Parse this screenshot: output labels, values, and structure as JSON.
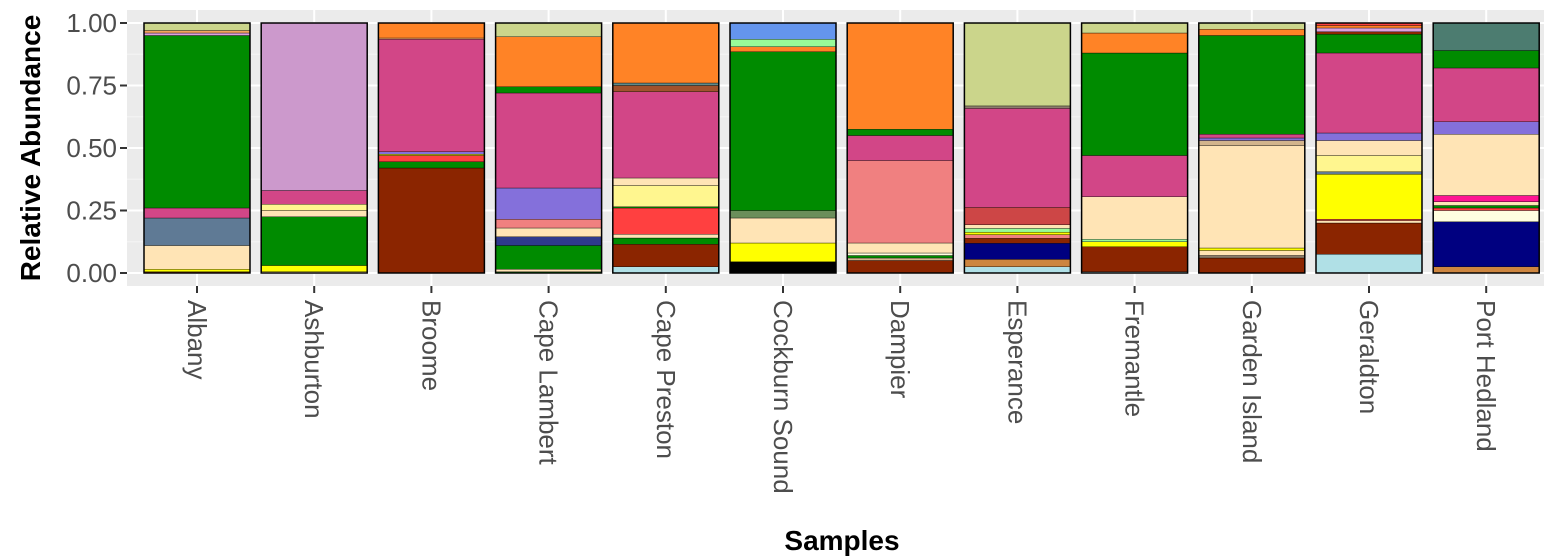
{
  "chart_data": {
    "type": "bar",
    "stacked": true,
    "xlabel": "Samples",
    "ylabel": "Relative Abundance",
    "ylim": [
      0,
      1
    ],
    "yticks": [
      "0.00",
      "0.25",
      "0.50",
      "0.75",
      "1.00"
    ],
    "grid": true,
    "legend": "none",
    "categories": [
      "Albany",
      "Ashburton",
      "Broome",
      "Cape Lambert",
      "Cape Preston",
      "Cockburn Sound",
      "Dampier",
      "Esperance",
      "Fremantle",
      "Garden Island",
      "Geraldton",
      "Port Hedland"
    ],
    "bars": [
      {
        "category": "Albany",
        "segments": [
          {
            "color": "#8B2500",
            "value": 0.005
          },
          {
            "color": "#FFFF00",
            "value": 0.01
          },
          {
            "color": "#FFE4B5",
            "value": 0.095
          },
          {
            "color": "#5F7A95",
            "value": 0.11
          },
          {
            "color": "#D24687",
            "value": 0.04
          },
          {
            "color": "#008B00",
            "value": 0.69
          },
          {
            "color": "#DDA0DD",
            "value": 0.01
          },
          {
            "color": "#F4A460",
            "value": 0.01
          },
          {
            "color": "#CBD58B",
            "value": 0.03
          }
        ]
      },
      {
        "category": "Ashburton",
        "segments": [
          {
            "color": "#FFE4B5",
            "value": 0.005
          },
          {
            "color": "#FFFF00",
            "value": 0.025
          },
          {
            "color": "#008B00",
            "value": 0.195
          },
          {
            "color": "#FFE4B5",
            "value": 0.025
          },
          {
            "color": "#FFF68F",
            "value": 0.025
          },
          {
            "color": "#D24687",
            "value": 0.055
          },
          {
            "color": "#CC99CC",
            "value": 0.67
          }
        ]
      },
      {
        "category": "Broome",
        "segments": [
          {
            "color": "#8B2500",
            "value": 0.42
          },
          {
            "color": "#008B00",
            "value": 0.025
          },
          {
            "color": "#FF4040",
            "value": 0.025
          },
          {
            "color": "#FFFF00",
            "value": 0.005
          },
          {
            "color": "#8470DB",
            "value": 0.01
          },
          {
            "color": "#D24687",
            "value": 0.45
          },
          {
            "color": "#F4A460",
            "value": 0.005
          },
          {
            "color": "#FF8326",
            "value": 0.06
          }
        ]
      },
      {
        "category": "Cape Lambert",
        "segments": [
          {
            "color": "#008B00",
            "value": 0.005
          },
          {
            "color": "#FFE4B5",
            "value": 0.01
          },
          {
            "color": "#008B00",
            "value": 0.095
          },
          {
            "color": "#2E3A8C",
            "value": 0.035
          },
          {
            "color": "#FFE4B5",
            "value": 0.035
          },
          {
            "color": "#F08080",
            "value": 0.035
          },
          {
            "color": "#8470DB",
            "value": 0.125
          },
          {
            "color": "#D24687",
            "value": 0.38
          },
          {
            "color": "#008B00",
            "value": 0.025
          },
          {
            "color": "#FF8326",
            "value": 0.2
          },
          {
            "color": "#CBD58B",
            "value": 0.055
          }
        ]
      },
      {
        "category": "Cape Preston",
        "segments": [
          {
            "color": "#B0E0E6",
            "value": 0.025
          },
          {
            "color": "#8B2500",
            "value": 0.09
          },
          {
            "color": "#008B00",
            "value": 0.025
          },
          {
            "color": "#FFE4B5",
            "value": 0.015
          },
          {
            "color": "#FF4040",
            "value": 0.105
          },
          {
            "color": "#008B00",
            "value": 0.005
          },
          {
            "color": "#FFF68F",
            "value": 0.085
          },
          {
            "color": "#FFE4B5",
            "value": 0.03
          },
          {
            "color": "#D24687",
            "value": 0.345
          },
          {
            "color": "#A0522D",
            "value": 0.025
          },
          {
            "color": "#5F8A8B",
            "value": 0.01
          },
          {
            "color": "#FF8326",
            "value": 0.24
          }
        ]
      },
      {
        "category": "Cockburn Sound",
        "segments": [
          {
            "color": "#000000",
            "value": 0.045
          },
          {
            "color": "#FFFF00",
            "value": 0.075
          },
          {
            "color": "#FFE4B5",
            "value": 0.1
          },
          {
            "color": "#6B8E5A",
            "value": 0.03
          },
          {
            "color": "#008B00",
            "value": 0.635
          },
          {
            "color": "#FF8326",
            "value": 0.02
          },
          {
            "color": "#98FB98",
            "value": 0.03
          },
          {
            "color": "#6495ED",
            "value": 0.065
          }
        ]
      },
      {
        "category": "Dampier",
        "segments": [
          {
            "color": "#8B2500",
            "value": 0.05
          },
          {
            "color": "#D2B48C",
            "value": 0.01
          },
          {
            "color": "#008B00",
            "value": 0.01
          },
          {
            "color": "#FFFFE0",
            "value": 0.01
          },
          {
            "color": "#FFE4B5",
            "value": 0.04
          },
          {
            "color": "#F08080",
            "value": 0.33
          },
          {
            "color": "#D24687",
            "value": 0.1
          },
          {
            "color": "#008B00",
            "value": 0.025
          },
          {
            "color": "#FF8326",
            "value": 0.425
          }
        ]
      },
      {
        "category": "Esperance",
        "segments": [
          {
            "color": "#B0E0E6",
            "value": 0.025
          },
          {
            "color": "#CD853F",
            "value": 0.03
          },
          {
            "color": "#000080",
            "value": 0.065
          },
          {
            "color": "#8B2500",
            "value": 0.02
          },
          {
            "color": "#F08080",
            "value": 0.015
          },
          {
            "color": "#FFFF00",
            "value": 0.01
          },
          {
            "color": "#98FB98",
            "value": 0.015
          },
          {
            "color": "#FFE4B5",
            "value": 0.015
          },
          {
            "color": "#CD4646",
            "value": 0.07
          },
          {
            "color": "#D24687",
            "value": 0.4
          },
          {
            "color": "#8B7D6B",
            "value": 0.01
          },
          {
            "color": "#CBD58B",
            "value": 0.335
          }
        ]
      },
      {
        "category": "Fremantle",
        "segments": [
          {
            "color": "#B0E0E6",
            "value": 0.005
          },
          {
            "color": "#8B2500",
            "value": 0.1
          },
          {
            "color": "#FFFF00",
            "value": 0.02
          },
          {
            "color": "#98FB98",
            "value": 0.01
          },
          {
            "color": "#FFE4B5",
            "value": 0.17
          },
          {
            "color": "#D24687",
            "value": 0.165
          },
          {
            "color": "#008B00",
            "value": 0.41
          },
          {
            "color": "#FF8326",
            "value": 0.08
          },
          {
            "color": "#CBD58B",
            "value": 0.04
          }
        ]
      },
      {
        "category": "Garden Island",
        "segments": [
          {
            "color": "#8B2500",
            "value": 0.06
          },
          {
            "color": "#8B7D6B",
            "value": 0.01
          },
          {
            "color": "#FFE4B5",
            "value": 0.02
          },
          {
            "color": "#FFFF00",
            "value": 0.01
          },
          {
            "color": "#FFE4B5",
            "value": 0.41
          },
          {
            "color": "#D2B48C",
            "value": 0.02
          },
          {
            "color": "#8470DB",
            "value": 0.01
          },
          {
            "color": "#D24687",
            "value": 0.015
          },
          {
            "color": "#008B00",
            "value": 0.395
          },
          {
            "color": "#FF8326",
            "value": 0.025
          },
          {
            "color": "#CBD58B",
            "value": 0.025
          }
        ]
      },
      {
        "category": "Geraldton",
        "segments": [
          {
            "color": "#B0E0E6",
            "value": 0.075
          },
          {
            "color": "#8B2500",
            "value": 0.125
          },
          {
            "color": "#FFE4B5",
            "value": 0.01
          },
          {
            "color": "#FF4040",
            "value": 0.005
          },
          {
            "color": "#FFFF00",
            "value": 0.18
          },
          {
            "color": "#5F7A95",
            "value": 0.01
          },
          {
            "color": "#FFF68F",
            "value": 0.065
          },
          {
            "color": "#FFE4B5",
            "value": 0.06
          },
          {
            "color": "#8470DB",
            "value": 0.03
          },
          {
            "color": "#D24687",
            "value": 0.32
          },
          {
            "color": "#008B00",
            "value": 0.075
          },
          {
            "color": "#8B2500",
            "value": 0.01
          },
          {
            "color": "#DDA0DD",
            "value": 0.015
          },
          {
            "color": "#FF8326",
            "value": 0.01
          },
          {
            "color": "#FF4040",
            "value": 0.01
          }
        ]
      },
      {
        "category": "Port Hedland",
        "segments": [
          {
            "color": "#CD853F",
            "value": 0.025
          },
          {
            "color": "#000080",
            "value": 0.18
          },
          {
            "color": "#FFFFE0",
            "value": 0.045
          },
          {
            "color": "#FF4040",
            "value": 0.01
          },
          {
            "color": "#008B00",
            "value": 0.01
          },
          {
            "color": "#FFE4B5",
            "value": 0.015
          },
          {
            "color": "#FF1493",
            "value": 0.025
          },
          {
            "color": "#FFE4B5",
            "value": 0.245
          },
          {
            "color": "#8470DB",
            "value": 0.05
          },
          {
            "color": "#D24687",
            "value": 0.215
          },
          {
            "color": "#008B00",
            "value": 0.07
          },
          {
            "color": "#4C7C70",
            "value": 0.11
          }
        ]
      }
    ]
  }
}
